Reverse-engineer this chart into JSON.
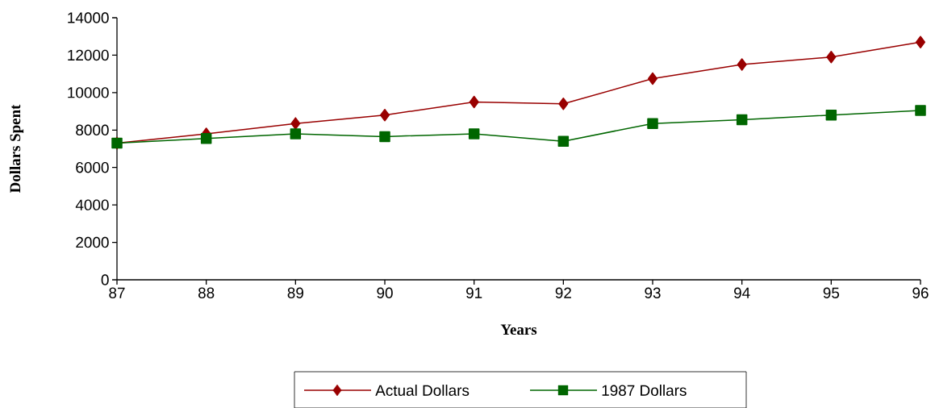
{
  "chart_data": {
    "type": "line",
    "xlabel": "Years",
    "ylabel": "Dollars Spent",
    "x": [
      87,
      88,
      89,
      90,
      91,
      92,
      93,
      94,
      95,
      96
    ],
    "series": [
      {
        "name": "Actual Dollars",
        "color": "#990000",
        "marker": "diamond",
        "values": [
          7300,
          7800,
          8350,
          8800,
          9500,
          9400,
          10750,
          11500,
          11900,
          12700
        ]
      },
      {
        "name": "1987 Dollars",
        "color": "#006600",
        "marker": "square",
        "values": [
          7300,
          7550,
          7800,
          7650,
          7800,
          7400,
          8350,
          8550,
          8800,
          9050
        ]
      }
    ],
    "xlim": [
      87,
      96
    ],
    "xticks": [
      87,
      88,
      89,
      90,
      91,
      92,
      93,
      94,
      95,
      96
    ],
    "ylim": [
      0,
      14000
    ],
    "yticks": [
      0,
      2000,
      4000,
      6000,
      8000,
      10000,
      12000,
      14000
    ],
    "grid": false,
    "legend": "bottom"
  }
}
